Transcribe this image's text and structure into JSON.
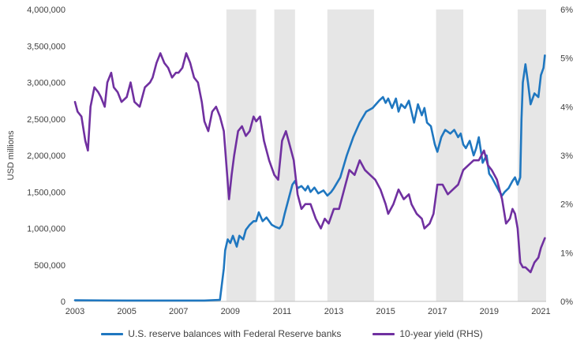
{
  "chart_data": {
    "type": "line",
    "title": "",
    "xlabel": "",
    "ylabel": "USD millions",
    "xlim": [
      2003,
      2021.2
    ],
    "ylim": [
      0,
      4000000
    ],
    "ylim_right": [
      0,
      6
    ],
    "y_ticks": [
      {
        "value": 0,
        "label": "0"
      },
      {
        "value": 500000,
        "label": "500,000"
      },
      {
        "value": 1000000,
        "label": "1,000,000"
      },
      {
        "value": 1500000,
        "label": "1,500,000"
      },
      {
        "value": 2000000,
        "label": "2,000,000"
      },
      {
        "value": 2500000,
        "label": "2,500,000"
      },
      {
        "value": 3000000,
        "label": "3,000,000"
      },
      {
        "value": 3500000,
        "label": "3,500,000"
      },
      {
        "value": 4000000,
        "label": "4,000,000"
      }
    ],
    "y_right_ticks": [
      {
        "value": 0,
        "label": "0%"
      },
      {
        "value": 1,
        "label": "1%"
      },
      {
        "value": 2,
        "label": "2%"
      },
      {
        "value": 3,
        "label": "3%"
      },
      {
        "value": 4,
        "label": "4%"
      },
      {
        "value": 5,
        "label": "5%"
      },
      {
        "value": 6,
        "label": "6%"
      }
    ],
    "x_ticks": [
      {
        "value": 2003,
        "label": "2003"
      },
      {
        "value": 2005,
        "label": "2005"
      },
      {
        "value": 2007,
        "label": "2007"
      },
      {
        "value": 2009,
        "label": "2009"
      },
      {
        "value": 2011,
        "label": "2011"
      },
      {
        "value": 2013,
        "label": "2013"
      },
      {
        "value": 2015,
        "label": "2015"
      },
      {
        "value": 2017,
        "label": "2017"
      },
      {
        "value": 2019,
        "label": "2019"
      },
      {
        "value": 2021,
        "label": "2021"
      }
    ],
    "shaded_periods": [
      [
        2008.85,
        2010.0
      ],
      [
        2010.7,
        2011.5
      ],
      [
        2012.75,
        2014.55
      ],
      [
        2016.95,
        2018.0
      ],
      [
        2020.1,
        2021.2
      ]
    ],
    "shade_color": "#e6e6e6",
    "grid": false,
    "legend_position": "bottom",
    "series": [
      {
        "name": "U.S. reserve balances with Federal Reserve banks",
        "axis": "left",
        "color": "#1f77c0",
        "x": [
          2003.0,
          2005.0,
          2008.0,
          2008.6,
          2008.75,
          2008.8,
          2008.9,
          2009.0,
          2009.1,
          2009.25,
          2009.35,
          2009.5,
          2009.6,
          2009.75,
          2009.9,
          2010.0,
          2010.1,
          2010.25,
          2010.4,
          2010.6,
          2010.75,
          2010.9,
          2011.0,
          2011.1,
          2011.25,
          2011.4,
          2011.5,
          2011.6,
          2011.75,
          2011.9,
          2012.0,
          2012.1,
          2012.25,
          2012.4,
          2012.6,
          2012.75,
          2012.9,
          2013.0,
          2013.25,
          2013.5,
          2013.75,
          2014.0,
          2014.25,
          2014.5,
          2014.75,
          2014.9,
          2015.0,
          2015.1,
          2015.25,
          2015.4,
          2015.5,
          2015.6,
          2015.75,
          2015.9,
          2016.0,
          2016.1,
          2016.25,
          2016.4,
          2016.5,
          2016.6,
          2016.75,
          2016.9,
          2017.0,
          2017.15,
          2017.3,
          2017.5,
          2017.65,
          2017.8,
          2017.9,
          2018.0,
          2018.1,
          2018.25,
          2018.4,
          2018.5,
          2018.6,
          2018.75,
          2018.9,
          2019.0,
          2019.1,
          2019.25,
          2019.4,
          2019.5,
          2019.6,
          2019.75,
          2019.9,
          2020.0,
          2020.1,
          2020.2,
          2020.25,
          2020.3,
          2020.4,
          2020.5,
          2020.6,
          2020.75,
          2020.9,
          2021.0,
          2021.1,
          2021.15
        ],
        "values": [
          15000,
          12000,
          12000,
          20000,
          450000,
          700000,
          850000,
          800000,
          900000,
          750000,
          900000,
          850000,
          980000,
          1050000,
          1100000,
          1100000,
          1220000,
          1100000,
          1150000,
          1050000,
          1020000,
          1000000,
          1050000,
          1200000,
          1400000,
          1600000,
          1650000,
          1550000,
          1580000,
          1520000,
          1580000,
          1500000,
          1560000,
          1480000,
          1520000,
          1450000,
          1500000,
          1550000,
          1700000,
          2000000,
          2250000,
          2450000,
          2600000,
          2650000,
          2750000,
          2800000,
          2720000,
          2780000,
          2650000,
          2780000,
          2600000,
          2700000,
          2650000,
          2750000,
          2600000,
          2450000,
          2700000,
          2550000,
          2650000,
          2450000,
          2400000,
          2150000,
          2050000,
          2250000,
          2350000,
          2300000,
          2350000,
          2250000,
          2300000,
          2150000,
          2100000,
          2200000,
          2000000,
          2100000,
          2250000,
          1900000,
          2000000,
          1750000,
          1700000,
          1600000,
          1500000,
          1450000,
          1500000,
          1550000,
          1650000,
          1700000,
          1600000,
          1700000,
          2500000,
          3000000,
          3250000,
          3000000,
          2700000,
          2850000,
          2800000,
          3100000,
          3200000,
          3370000
        ]
      },
      {
        "name": "10-year yield (RHS)",
        "axis": "right",
        "color": "#7030a0",
        "x": [
          2003.0,
          2003.1,
          2003.25,
          2003.4,
          2003.5,
          2003.6,
          2003.75,
          2003.9,
          2004.0,
          2004.15,
          2004.25,
          2004.4,
          2004.5,
          2004.65,
          2004.8,
          2005.0,
          2005.15,
          2005.3,
          2005.5,
          2005.7,
          2005.9,
          2006.0,
          2006.15,
          2006.3,
          2006.45,
          2006.6,
          2006.75,
          2006.9,
          2007.0,
          2007.15,
          2007.3,
          2007.45,
          2007.6,
          2007.75,
          2007.9,
          2008.0,
          2008.15,
          2008.3,
          2008.45,
          2008.6,
          2008.75,
          2008.85,
          2008.95,
          2009.05,
          2009.15,
          2009.3,
          2009.45,
          2009.6,
          2009.75,
          2009.9,
          2010.0,
          2010.15,
          2010.3,
          2010.5,
          2010.7,
          2010.85,
          2011.0,
          2011.15,
          2011.3,
          2011.45,
          2011.6,
          2011.75,
          2011.9,
          2012.1,
          2012.3,
          2012.5,
          2012.65,
          2012.8,
          2013.0,
          2013.2,
          2013.4,
          2013.6,
          2013.8,
          2014.0,
          2014.2,
          2014.4,
          2014.6,
          2014.8,
          2015.0,
          2015.1,
          2015.3,
          2015.5,
          2015.7,
          2015.9,
          2016.0,
          2016.2,
          2016.4,
          2016.5,
          2016.7,
          2016.85,
          2017.0,
          2017.2,
          2017.4,
          2017.6,
          2017.8,
          2018.0,
          2018.2,
          2018.4,
          2018.6,
          2018.8,
          2018.95,
          2019.1,
          2019.3,
          2019.5,
          2019.65,
          2019.8,
          2019.9,
          2020.0,
          2020.1,
          2020.2,
          2020.3,
          2020.4,
          2020.6,
          2020.75,
          2020.9,
          2021.0,
          2021.15
        ],
        "values": [
          4.1,
          3.9,
          3.8,
          3.3,
          3.1,
          4.0,
          4.4,
          4.3,
          4.2,
          4.0,
          4.5,
          4.7,
          4.4,
          4.3,
          4.1,
          4.2,
          4.5,
          4.1,
          4.0,
          4.4,
          4.5,
          4.6,
          4.9,
          5.1,
          4.9,
          4.8,
          4.6,
          4.7,
          4.7,
          4.8,
          5.1,
          4.9,
          4.6,
          4.5,
          4.1,
          3.7,
          3.5,
          3.9,
          4.0,
          3.8,
          3.5,
          2.8,
          2.1,
          2.6,
          3.0,
          3.5,
          3.6,
          3.4,
          3.5,
          3.8,
          3.7,
          3.8,
          3.3,
          2.9,
          2.6,
          2.5,
          3.3,
          3.5,
          3.2,
          2.9,
          2.2,
          1.9,
          2.0,
          2.0,
          1.7,
          1.5,
          1.7,
          1.6,
          1.9,
          1.9,
          2.3,
          2.7,
          2.6,
          2.9,
          2.7,
          2.6,
          2.5,
          2.3,
          2.0,
          1.8,
          2.0,
          2.3,
          2.1,
          2.2,
          2.0,
          1.8,
          1.7,
          1.5,
          1.6,
          1.8,
          2.4,
          2.4,
          2.2,
          2.3,
          2.4,
          2.7,
          2.8,
          2.9,
          2.9,
          3.1,
          2.8,
          2.7,
          2.5,
          2.1,
          1.6,
          1.7,
          1.9,
          1.8,
          1.5,
          0.8,
          0.7,
          0.7,
          0.6,
          0.8,
          0.9,
          1.1,
          1.3
        ]
      }
    ]
  }
}
